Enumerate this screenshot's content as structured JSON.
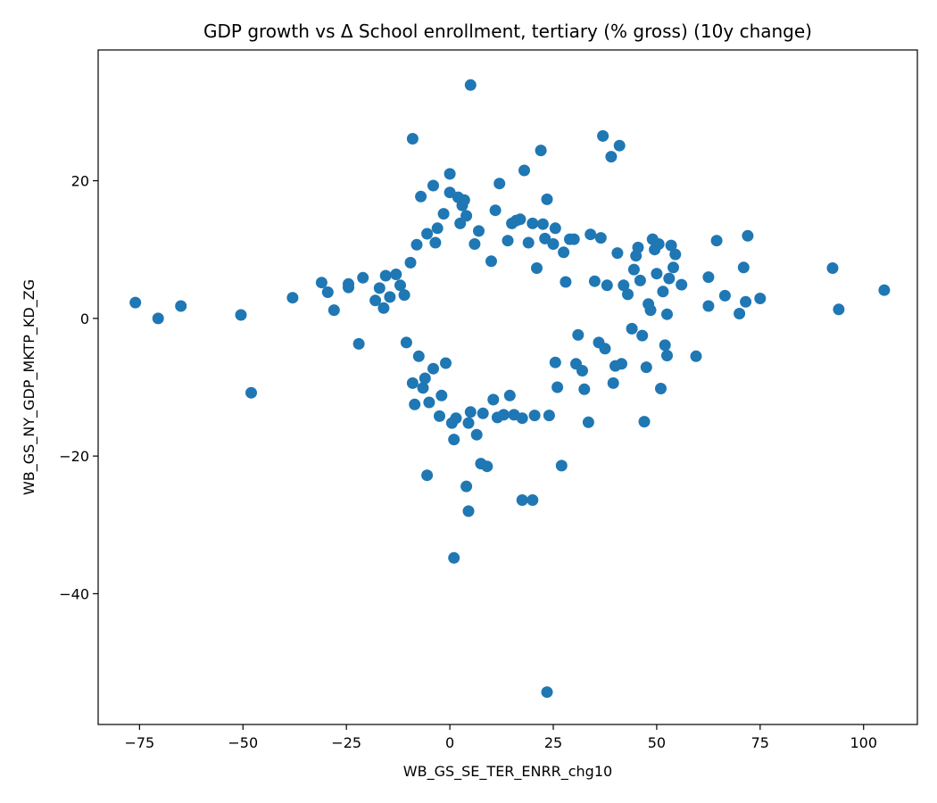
{
  "chart_data": {
    "type": "scatter",
    "title": "GDP growth vs Δ School enrollment, tertiary (% gross) (10y change)",
    "xlabel": "WB_GS_SE_TER_ENRR_chg10",
    "ylabel": "WB_GS_NY_GDP_MKTP_KD_ZG",
    "xlim": [
      -85,
      113
    ],
    "ylim": [
      -59,
      39
    ],
    "xticks": [
      -75,
      -50,
      -25,
      0,
      25,
      50,
      75,
      100
    ],
    "xtick_labels": [
      "−75",
      "−50",
      "−25",
      "0",
      "25",
      "50",
      "75",
      "100"
    ],
    "yticks": [
      -40,
      -20,
      0,
      20
    ],
    "ytick_labels": [
      "−40",
      "−20",
      "0",
      "20"
    ],
    "grid": false,
    "legend": "none",
    "marker_color": "#1f77b4",
    "points": [
      [
        -76,
        2.3
      ],
      [
        -70.5,
        0
      ],
      [
        -65,
        1.8
      ],
      [
        -50.5,
        0.5
      ],
      [
        -48,
        -10.8
      ],
      [
        -38,
        3
      ],
      [
        -31,
        5.2
      ],
      [
        -29.5,
        3.8
      ],
      [
        -28,
        1.2
      ],
      [
        -24.5,
        5
      ],
      [
        -24.5,
        4.5
      ],
      [
        -22,
        -3.7
      ],
      [
        -21,
        5.9
      ],
      [
        -18,
        2.6
      ],
      [
        -17,
        4.4
      ],
      [
        -16,
        1.5
      ],
      [
        -15.5,
        6.2
      ],
      [
        -14.5,
        3.1
      ],
      [
        -13,
        6.4
      ],
      [
        -12,
        4.8
      ],
      [
        -11,
        3.4
      ],
      [
        -10.5,
        -3.5
      ],
      [
        -9.5,
        8.1
      ],
      [
        -9,
        26.1
      ],
      [
        -9,
        -9.4
      ],
      [
        -8.5,
        -12.5
      ],
      [
        -8,
        10.7
      ],
      [
        -7.5,
        -5.5
      ],
      [
        -7,
        17.7
      ],
      [
        -6.5,
        -10.1
      ],
      [
        -6,
        -8.7
      ],
      [
        -5.5,
        -22.8
      ],
      [
        -5.5,
        12.3
      ],
      [
        -5,
        -12.2
      ],
      [
        -4,
        19.3
      ],
      [
        -4,
        -7.3
      ],
      [
        -3.5,
        11
      ],
      [
        -3,
        13.1
      ],
      [
        -2.5,
        -14.2
      ],
      [
        -2,
        -11.2
      ],
      [
        -1.5,
        15.2
      ],
      [
        -1,
        -6.5
      ],
      [
        0,
        21
      ],
      [
        0,
        18.3
      ],
      [
        0.5,
        -15.2
      ],
      [
        1,
        -34.8
      ],
      [
        1,
        -17.6
      ],
      [
        1.5,
        -14.5
      ],
      [
        2,
        17.6
      ],
      [
        2.5,
        13.8
      ],
      [
        3,
        16.4
      ],
      [
        3.5,
        17.2
      ],
      [
        4,
        -24.4
      ],
      [
        4,
        14.9
      ],
      [
        4.5,
        -28
      ],
      [
        4.5,
        -15.2
      ],
      [
        5,
        33.9
      ],
      [
        5,
        -13.6
      ],
      [
        6,
        10.8
      ],
      [
        6.5,
        -16.9
      ],
      [
        7,
        12.7
      ],
      [
        7.5,
        -21.1
      ],
      [
        8,
        -13.8
      ],
      [
        9,
        -21.5
      ],
      [
        10,
        8.3
      ],
      [
        10.5,
        -11.8
      ],
      [
        11,
        15.7
      ],
      [
        11.5,
        -14.4
      ],
      [
        12,
        19.6
      ],
      [
        13,
        -14
      ],
      [
        14,
        11.3
      ],
      [
        14.5,
        -11.2
      ],
      [
        15,
        13.8
      ],
      [
        15.5,
        -14
      ],
      [
        16,
        14.2
      ],
      [
        17,
        14.4
      ],
      [
        17.5,
        -14.5
      ],
      [
        17.5,
        -26.4
      ],
      [
        18,
        21.5
      ],
      [
        19,
        11
      ],
      [
        20,
        13.8
      ],
      [
        20,
        -26.4
      ],
      [
        20.5,
        -14.1
      ],
      [
        21,
        7.3
      ],
      [
        22,
        24.4
      ],
      [
        22.5,
        13.7
      ],
      [
        23,
        11.6
      ],
      [
        23.5,
        -54.3
      ],
      [
        23.5,
        17.3
      ],
      [
        24,
        -14.1
      ],
      [
        25,
        10.8
      ],
      [
        25.5,
        13.1
      ],
      [
        25.5,
        -6.4
      ],
      [
        26,
        -10
      ],
      [
        27,
        -21.4
      ],
      [
        27.5,
        9.6
      ],
      [
        28,
        5.3
      ],
      [
        29,
        11.5
      ],
      [
        30,
        11.5
      ],
      [
        30.5,
        -6.6
      ],
      [
        31,
        -2.4
      ],
      [
        32,
        -7.6
      ],
      [
        32.5,
        -10.3
      ],
      [
        33.5,
        -15.1
      ],
      [
        34,
        12.2
      ],
      [
        35,
        5.4
      ],
      [
        36,
        -3.5
      ],
      [
        36.5,
        11.7
      ],
      [
        37,
        26.5
      ],
      [
        37.5,
        -4.4
      ],
      [
        38,
        4.8
      ],
      [
        39,
        23.5
      ],
      [
        39.5,
        -9.4
      ],
      [
        40,
        -6.9
      ],
      [
        40.5,
        9.5
      ],
      [
        41,
        25.1
      ],
      [
        41.5,
        -6.6
      ],
      [
        42,
        4.8
      ],
      [
        43,
        3.5
      ],
      [
        44,
        -1.5
      ],
      [
        44.5,
        7.1
      ],
      [
        45,
        9.1
      ],
      [
        45.5,
        10.3
      ],
      [
        46,
        5.5
      ],
      [
        46.5,
        -2.5
      ],
      [
        47,
        -15
      ],
      [
        47.5,
        -7.1
      ],
      [
        48,
        2.1
      ],
      [
        48.5,
        1.2
      ],
      [
        49,
        11.5
      ],
      [
        49.5,
        10
      ],
      [
        50,
        6.5
      ],
      [
        50.5,
        10.8
      ],
      [
        51,
        -10.2
      ],
      [
        51.5,
        3.9
      ],
      [
        52,
        -3.9
      ],
      [
        52.5,
        0.6
      ],
      [
        52.5,
        -5.4
      ],
      [
        53,
        5.8
      ],
      [
        53.5,
        10.6
      ],
      [
        54,
        7.4
      ],
      [
        54.5,
        9.3
      ],
      [
        56,
        4.9
      ],
      [
        59.5,
        -5.5
      ],
      [
        62.5,
        6
      ],
      [
        62.5,
        1.8
      ],
      [
        64.5,
        11.3
      ],
      [
        66.5,
        3.3
      ],
      [
        70,
        0.7
      ],
      [
        71,
        7.4
      ],
      [
        71.5,
        2.4
      ],
      [
        72,
        12
      ],
      [
        75,
        2.9
      ],
      [
        92.5,
        7.3
      ],
      [
        94,
        1.3
      ],
      [
        105,
        4.1
      ]
    ]
  }
}
